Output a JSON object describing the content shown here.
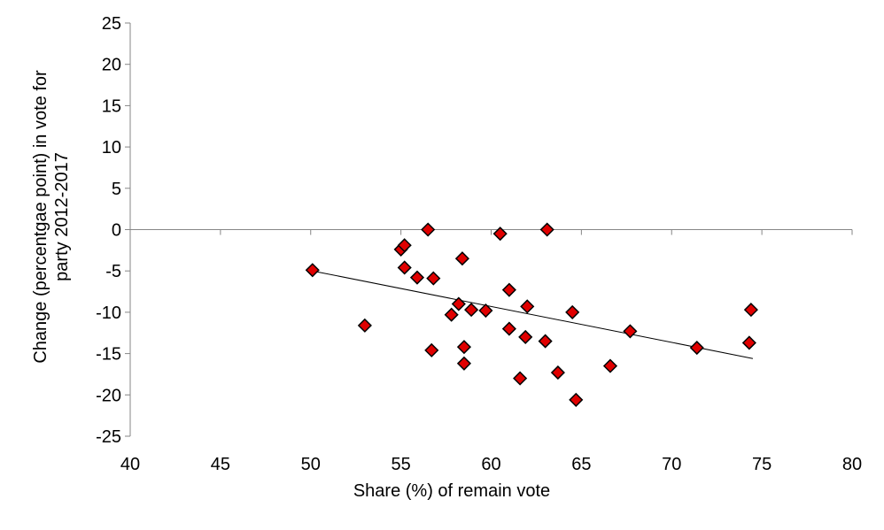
{
  "chart_data": {
    "type": "scatter",
    "title": "",
    "xlabel": "Share (%) of remain vote",
    "ylabel_lines": [
      "Change (percentgae point) in vote for",
      "party 2012-2017"
    ],
    "xlim": [
      40,
      80
    ],
    "ylim": [
      -25,
      25
    ],
    "xticks": [
      40,
      45,
      50,
      55,
      60,
      65,
      70,
      75,
      80
    ],
    "yticks": [
      25,
      20,
      15,
      10,
      5,
      0,
      -5,
      -10,
      -15,
      -20,
      -25
    ],
    "grid": false,
    "legend": "none",
    "marker": "diamond",
    "marker_color": "#e00000",
    "marker_edge_color": "#000000",
    "trendline": {
      "type": "linear",
      "x": [
        50.1,
        74.5
      ],
      "y": [
        -5.0,
        -15.6
      ]
    },
    "points": [
      {
        "x": 50.1,
        "y": -4.9
      },
      {
        "x": 53.0,
        "y": -11.6
      },
      {
        "x": 55.0,
        "y": -2.4
      },
      {
        "x": 55.2,
        "y": -1.9
      },
      {
        "x": 55.2,
        "y": -4.6
      },
      {
        "x": 55.9,
        "y": -5.8
      },
      {
        "x": 56.5,
        "y": 0.0
      },
      {
        "x": 56.7,
        "y": -14.6
      },
      {
        "x": 56.8,
        "y": -5.9
      },
      {
        "x": 57.8,
        "y": -10.3
      },
      {
        "x": 58.2,
        "y": -9.0
      },
      {
        "x": 58.4,
        "y": -3.5
      },
      {
        "x": 58.5,
        "y": -14.2
      },
      {
        "x": 58.5,
        "y": -16.2
      },
      {
        "x": 58.9,
        "y": -9.7
      },
      {
        "x": 59.7,
        "y": -9.8
      },
      {
        "x": 60.5,
        "y": -0.5
      },
      {
        "x": 61.0,
        "y": -7.3
      },
      {
        "x": 61.0,
        "y": -12.0
      },
      {
        "x": 61.6,
        "y": -18.0
      },
      {
        "x": 61.9,
        "y": -13.0
      },
      {
        "x": 62.0,
        "y": -9.3
      },
      {
        "x": 63.0,
        "y": -13.5
      },
      {
        "x": 63.1,
        "y": 0.0
      },
      {
        "x": 63.7,
        "y": -17.3
      },
      {
        "x": 64.5,
        "y": -10.0
      },
      {
        "x": 64.7,
        "y": -20.6
      },
      {
        "x": 66.6,
        "y": -16.5
      },
      {
        "x": 67.7,
        "y": -12.3
      },
      {
        "x": 71.4,
        "y": -14.3
      },
      {
        "x": 74.3,
        "y": -13.7
      },
      {
        "x": 74.4,
        "y": -9.7
      }
    ]
  }
}
